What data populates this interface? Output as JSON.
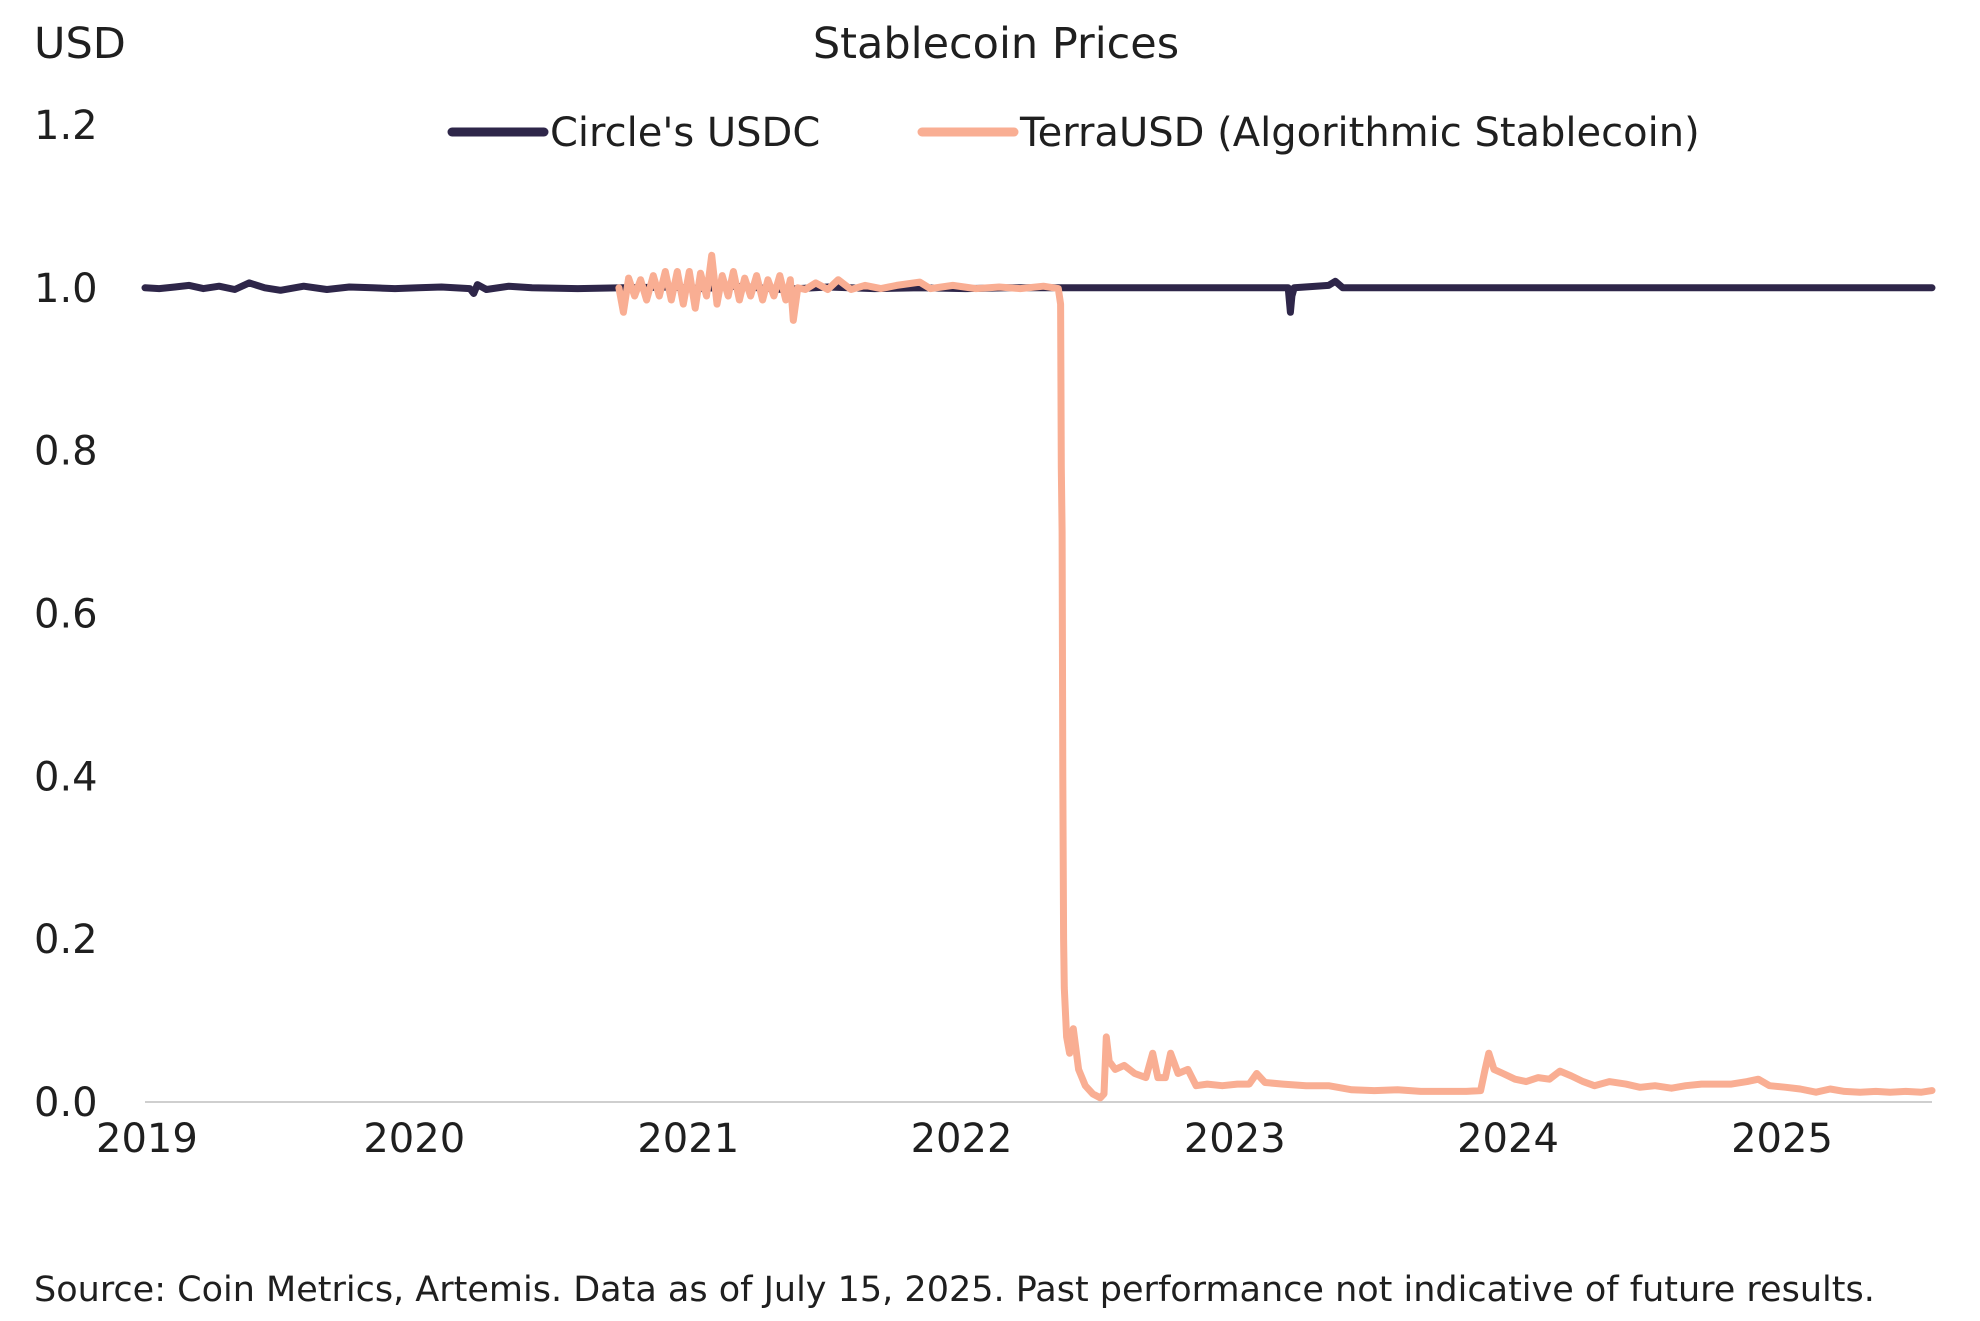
{
  "colors": {
    "usdc": "#2e2649",
    "terra": "#f9ae93",
    "axis": "#cfcfcf",
    "text": "#1f1f1f"
  },
  "chart_data": {
    "type": "line",
    "title": "Stablecoin Prices",
    "ylabel": "USD",
    "xlabel": "",
    "ylim": [
      0,
      1.2
    ],
    "y_ticks": [
      "0.0",
      "0.2",
      "0.4",
      "0.6",
      "0.8",
      "1.0",
      "1.2"
    ],
    "y_tick_values": [
      0,
      0.2,
      0.4,
      0.6,
      0.8,
      1.0,
      1.2
    ],
    "x_ticks": [
      "2019",
      "2020",
      "2021",
      "2022",
      "2023",
      "2024",
      "2025"
    ],
    "xlim": [
      "2019-01-01",
      "2025-07-15"
    ],
    "grid": false,
    "legend_position": "top-center",
    "series": [
      {
        "name": "Circle's USDC",
        "color": "#2e2649",
        "points": [
          [
            "2019-01-01",
            1.0
          ],
          [
            "2019-01-20",
            0.999
          ],
          [
            "2019-02-10",
            1.001
          ],
          [
            "2019-03-01",
            1.003
          ],
          [
            "2019-03-20",
            0.999
          ],
          [
            "2019-04-10",
            1.002
          ],
          [
            "2019-05-01",
            0.998
          ],
          [
            "2019-05-20",
            1.006
          ],
          [
            "2019-06-10",
            1.0
          ],
          [
            "2019-07-01",
            0.997
          ],
          [
            "2019-08-01",
            1.002
          ],
          [
            "2019-09-01",
            0.998
          ],
          [
            "2019-10-01",
            1.001
          ],
          [
            "2019-11-01",
            1.0
          ],
          [
            "2019-12-01",
            0.999
          ],
          [
            "2020-01-01",
            1.0
          ],
          [
            "2020-02-01",
            1.001
          ],
          [
            "2020-03-10",
            0.999
          ],
          [
            "2020-03-15",
            0.993
          ],
          [
            "2020-03-20",
            1.004
          ],
          [
            "2020-04-01",
            0.998
          ],
          [
            "2020-05-01",
            1.002
          ],
          [
            "2020-06-01",
            1.0
          ],
          [
            "2020-08-01",
            0.999
          ],
          [
            "2020-10-01",
            1.0
          ],
          [
            "2020-12-01",
            1.001
          ],
          [
            "2021-01-15",
            0.999
          ],
          [
            "2021-03-01",
            1.002
          ],
          [
            "2021-05-01",
            0.998
          ],
          [
            "2021-07-01",
            1.001
          ],
          [
            "2021-09-01",
            0.999
          ],
          [
            "2021-11-01",
            1.0
          ],
          [
            "2022-01-01",
            0.999
          ],
          [
            "2022-03-01",
            1.0
          ],
          [
            "2022-05-01",
            1.0
          ],
          [
            "2022-07-01",
            1.0
          ],
          [
            "2022-09-01",
            1.0
          ],
          [
            "2022-11-01",
            1.0
          ],
          [
            "2023-01-01",
            1.0
          ],
          [
            "2023-03-08",
            1.0
          ],
          [
            "2023-03-11",
            0.97
          ],
          [
            "2023-03-13",
            0.99
          ],
          [
            "2023-03-16",
            1.0
          ],
          [
            "2023-05-01",
            1.003
          ],
          [
            "2023-05-10",
            1.008
          ],
          [
            "2023-05-20",
            1.0
          ],
          [
            "2023-08-01",
            1.0
          ],
          [
            "2023-11-01",
            1.0
          ],
          [
            "2024-01-01",
            1.0
          ],
          [
            "2024-04-01",
            1.0
          ],
          [
            "2024-07-01",
            1.0
          ],
          [
            "2024-10-01",
            1.0
          ],
          [
            "2025-01-01",
            1.0
          ],
          [
            "2025-04-01",
            1.0
          ],
          [
            "2025-07-15",
            1.0
          ]
        ]
      },
      {
        "name": "TerraUSD (Algorithmic Stablecoin)",
        "color": "#f9ae93",
        "points": [
          [
            "2020-09-25",
            1.0
          ],
          [
            "2020-10-01",
            0.97
          ],
          [
            "2020-10-08",
            1.012
          ],
          [
            "2020-10-16",
            0.99
          ],
          [
            "2020-10-24",
            1.01
          ],
          [
            "2020-11-01",
            0.985
          ],
          [
            "2020-11-10",
            1.015
          ],
          [
            "2020-11-18",
            0.99
          ],
          [
            "2020-11-26",
            1.02
          ],
          [
            "2020-12-04",
            0.985
          ],
          [
            "2020-12-12",
            1.02
          ],
          [
            "2020-12-20",
            0.98
          ],
          [
            "2020-12-28",
            1.02
          ],
          [
            "2021-01-05",
            0.975
          ],
          [
            "2021-01-12",
            1.018
          ],
          [
            "2021-01-20",
            0.99
          ],
          [
            "2021-01-27",
            1.04
          ],
          [
            "2021-02-03",
            0.98
          ],
          [
            "2021-02-10",
            1.015
          ],
          [
            "2021-02-18",
            0.99
          ],
          [
            "2021-02-25",
            1.02
          ],
          [
            "2021-03-05",
            0.985
          ],
          [
            "2021-03-12",
            1.012
          ],
          [
            "2021-03-20",
            0.99
          ],
          [
            "2021-03-28",
            1.015
          ],
          [
            "2021-04-05",
            0.985
          ],
          [
            "2021-04-12",
            1.01
          ],
          [
            "2021-04-20",
            0.99
          ],
          [
            "2021-04-28",
            1.015
          ],
          [
            "2021-05-06",
            0.985
          ],
          [
            "2021-05-12",
            1.01
          ],
          [
            "2021-05-16",
            0.96
          ],
          [
            "2021-05-22",
            1.0
          ],
          [
            "2021-06-01",
            0.998
          ],
          [
            "2021-06-15",
            1.006
          ],
          [
            "2021-07-01",
            0.998
          ],
          [
            "2021-07-15",
            1.01
          ],
          [
            "2021-08-01",
            0.998
          ],
          [
            "2021-08-20",
            1.003
          ],
          [
            "2021-09-10",
            0.999
          ],
          [
            "2021-10-01",
            1.003
          ],
          [
            "2021-11-01",
            1.007
          ],
          [
            "2021-11-15",
            0.999
          ],
          [
            "2021-12-15",
            1.003
          ],
          [
            "2022-01-15",
            0.999
          ],
          [
            "2022-02-15",
            1.001
          ],
          [
            "2022-03-15",
            0.999
          ],
          [
            "2022-04-15",
            1.002
          ],
          [
            "2022-05-05",
            0.999
          ],
          [
            "2022-05-08",
            0.98
          ],
          [
            "2022-05-09",
            0.78
          ],
          [
            "2022-05-10",
            0.7
          ],
          [
            "2022-05-11",
            0.4
          ],
          [
            "2022-05-12",
            0.2
          ],
          [
            "2022-05-13",
            0.14
          ],
          [
            "2022-05-16",
            0.08
          ],
          [
            "2022-05-20",
            0.06
          ],
          [
            "2022-05-25",
            0.09
          ],
          [
            "2022-06-01",
            0.04
          ],
          [
            "2022-06-10",
            0.02
          ],
          [
            "2022-06-20",
            0.01
          ],
          [
            "2022-06-30",
            0.005
          ],
          [
            "2022-07-05",
            0.01
          ],
          [
            "2022-07-08",
            0.08
          ],
          [
            "2022-07-12",
            0.05
          ],
          [
            "2022-07-20",
            0.04
          ],
          [
            "2022-08-01",
            0.045
          ],
          [
            "2022-08-15",
            0.035
          ],
          [
            "2022-08-30",
            0.03
          ],
          [
            "2022-09-08",
            0.06
          ],
          [
            "2022-09-15",
            0.03
          ],
          [
            "2022-09-25",
            0.03
          ],
          [
            "2022-10-02",
            0.06
          ],
          [
            "2022-10-12",
            0.035
          ],
          [
            "2022-10-25",
            0.04
          ],
          [
            "2022-11-05",
            0.02
          ],
          [
            "2022-11-20",
            0.022
          ],
          [
            "2022-12-10",
            0.02
          ],
          [
            "2022-12-30",
            0.022
          ],
          [
            "2023-01-15",
            0.022
          ],
          [
            "2023-01-25",
            0.035
          ],
          [
            "2023-02-05",
            0.024
          ],
          [
            "2023-03-01",
            0.022
          ],
          [
            "2023-04-01",
            0.02
          ],
          [
            "2023-05-01",
            0.02
          ],
          [
            "2023-06-01",
            0.015
          ],
          [
            "2023-07-01",
            0.014
          ],
          [
            "2023-08-01",
            0.015
          ],
          [
            "2023-09-01",
            0.013
          ],
          [
            "2023-10-01",
            0.013
          ],
          [
            "2023-11-01",
            0.013
          ],
          [
            "2023-11-20",
            0.014
          ],
          [
            "2023-11-26",
            0.04
          ],
          [
            "2023-12-01",
            0.06
          ],
          [
            "2023-12-08",
            0.04
          ],
          [
            "2023-12-20",
            0.035
          ],
          [
            "2024-01-05",
            0.028
          ],
          [
            "2024-01-20",
            0.025
          ],
          [
            "2024-02-05",
            0.03
          ],
          [
            "2024-02-20",
            0.028
          ],
          [
            "2024-03-05",
            0.038
          ],
          [
            "2024-03-20",
            0.032
          ],
          [
            "2024-04-05",
            0.025
          ],
          [
            "2024-04-20",
            0.02
          ],
          [
            "2024-05-10",
            0.025
          ],
          [
            "2024-06-01",
            0.022
          ],
          [
            "2024-06-20",
            0.018
          ],
          [
            "2024-07-10",
            0.02
          ],
          [
            "2024-08-01",
            0.017
          ],
          [
            "2024-08-20",
            0.02
          ],
          [
            "2024-09-10",
            0.022
          ],
          [
            "2024-10-01",
            0.022
          ],
          [
            "2024-10-20",
            0.022
          ],
          [
            "2024-11-10",
            0.025
          ],
          [
            "2024-11-25",
            0.028
          ],
          [
            "2024-12-10",
            0.02
          ],
          [
            "2025-01-01",
            0.018
          ],
          [
            "2025-01-20",
            0.016
          ],
          [
            "2025-02-10",
            0.012
          ],
          [
            "2025-03-01",
            0.016
          ],
          [
            "2025-03-20",
            0.013
          ],
          [
            "2025-04-10",
            0.012
          ],
          [
            "2025-05-01",
            0.013
          ],
          [
            "2025-05-20",
            0.012
          ],
          [
            "2025-06-10",
            0.013
          ],
          [
            "2025-07-01",
            0.012
          ],
          [
            "2025-07-15",
            0.014
          ]
        ]
      }
    ]
  },
  "footer": {
    "source": "Source: Coin Metrics, Artemis. Data as of July 15, 2025. Past performance not indicative of future results."
  }
}
